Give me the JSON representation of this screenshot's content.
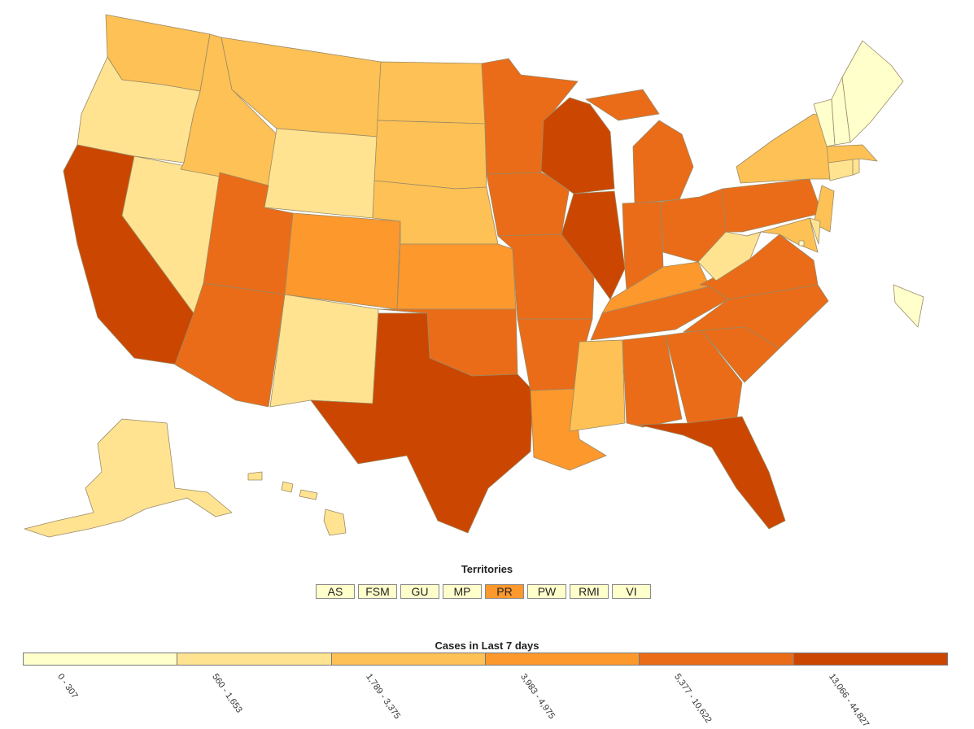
{
  "colors": {
    "bin0": "#ffffcc",
    "bin1": "#ffe391",
    "bin2": "#fec155",
    "bin3": "#fd982d",
    "bin4": "#ea6c18",
    "bin5": "#cb4701"
  },
  "states": [
    {
      "id": "WA",
      "bin": 2
    },
    {
      "id": "OR",
      "bin": 1
    },
    {
      "id": "CA",
      "bin": 5
    },
    {
      "id": "NV",
      "bin": 1
    },
    {
      "id": "ID",
      "bin": 2
    },
    {
      "id": "MT",
      "bin": 2
    },
    {
      "id": "WY",
      "bin": 1
    },
    {
      "id": "UT",
      "bin": 4
    },
    {
      "id": "AZ",
      "bin": 4
    },
    {
      "id": "CO",
      "bin": 3
    },
    {
      "id": "NM",
      "bin": 1
    },
    {
      "id": "ND",
      "bin": 2
    },
    {
      "id": "SD",
      "bin": 2
    },
    {
      "id": "NE",
      "bin": 2
    },
    {
      "id": "KS",
      "bin": 3
    },
    {
      "id": "OK",
      "bin": 4
    },
    {
      "id": "TX",
      "bin": 5
    },
    {
      "id": "MN",
      "bin": 4
    },
    {
      "id": "IA",
      "bin": 4
    },
    {
      "id": "MO",
      "bin": 4
    },
    {
      "id": "AR",
      "bin": 4
    },
    {
      "id": "LA",
      "bin": 3
    },
    {
      "id": "WI",
      "bin": 5
    },
    {
      "id": "IL",
      "bin": 5
    },
    {
      "id": "MI",
      "bin": 4
    },
    {
      "id": "IN",
      "bin": 4
    },
    {
      "id": "OH",
      "bin": 4
    },
    {
      "id": "KY",
      "bin": 3
    },
    {
      "id": "TN",
      "bin": 4
    },
    {
      "id": "MS",
      "bin": 2
    },
    {
      "id": "AL",
      "bin": 4
    },
    {
      "id": "GA",
      "bin": 4
    },
    {
      "id": "FL",
      "bin": 5
    },
    {
      "id": "SC",
      "bin": 4
    },
    {
      "id": "NC",
      "bin": 4
    },
    {
      "id": "VA",
      "bin": 4
    },
    {
      "id": "WV",
      "bin": 1
    },
    {
      "id": "PA",
      "bin": 4
    },
    {
      "id": "NY",
      "bin": 2
    },
    {
      "id": "NJ",
      "bin": 2
    },
    {
      "id": "MD",
      "bin": 2
    },
    {
      "id": "DE",
      "bin": 1
    },
    {
      "id": "CT",
      "bin": 1
    },
    {
      "id": "RI",
      "bin": 1
    },
    {
      "id": "MA",
      "bin": 2
    },
    {
      "id": "VT",
      "bin": 0
    },
    {
      "id": "NH",
      "bin": 0
    },
    {
      "id": "ME",
      "bin": 0
    },
    {
      "id": "AK",
      "bin": 1
    },
    {
      "id": "HI",
      "bin": 1
    },
    {
      "id": "DC",
      "bin": 0
    }
  ],
  "territories": {
    "title": "Territories",
    "items": [
      {
        "label": "AS",
        "bin": 0
      },
      {
        "label": "FSM",
        "bin": 0
      },
      {
        "label": "GU",
        "bin": 0
      },
      {
        "label": "MP",
        "bin": 0
      },
      {
        "label": "PR",
        "bin": 3
      },
      {
        "label": "PW",
        "bin": 0
      },
      {
        "label": "RMI",
        "bin": 0
      },
      {
        "label": "VI",
        "bin": 0
      }
    ]
  },
  "legend": {
    "title": "Cases in Last 7 days",
    "bins": [
      {
        "label": "0 - 307",
        "color": "#ffffcc"
      },
      {
        "label": "560 - 1,653",
        "color": "#ffe391"
      },
      {
        "label": "1,789 - 3,375",
        "color": "#fec155"
      },
      {
        "label": "3,983 - 4,975",
        "color": "#fd982d"
      },
      {
        "label": "5,377 - 10,622",
        "color": "#ea6c18"
      },
      {
        "label": "13,066 - 44,827",
        "color": "#cb4701"
      }
    ]
  }
}
